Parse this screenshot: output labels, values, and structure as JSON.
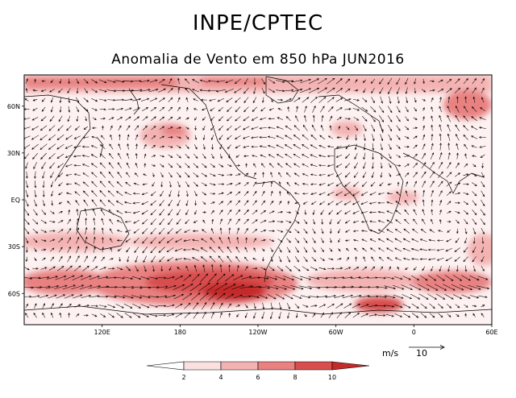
{
  "header": {
    "title": "INPE/CPTEC",
    "subtitle": "Anomalia de Vento em 850 hPa JUN2016"
  },
  "map": {
    "projection": "cylindrical equidistant",
    "lon_range": [
      60,
      420
    ],
    "lat_range": [
      -80,
      80
    ],
    "lat_ticks": [
      {
        "value": 60,
        "label": "60N"
      },
      {
        "value": 30,
        "label": "30N"
      },
      {
        "value": 0,
        "label": "EQ"
      },
      {
        "value": -30,
        "label": "30S"
      },
      {
        "value": -60,
        "label": "60S"
      }
    ],
    "lon_ticks": [
      {
        "value": 120,
        "label": "120E"
      },
      {
        "value": 180,
        "label": "180"
      },
      {
        "value": 240,
        "label": "120W"
      },
      {
        "value": 300,
        "label": "60W"
      },
      {
        "value": 360,
        "label": "0"
      },
      {
        "value": 420,
        "label": "60E"
      }
    ]
  },
  "legend": {
    "labels": [
      "2",
      "4",
      "6",
      "8",
      "10"
    ],
    "colors": [
      "#ffffff",
      "#fbe0e0",
      "#f4b3b3",
      "#e98181",
      "#d84d4d",
      "#c52a2a"
    ],
    "units": "m/s",
    "reference_vector": "10"
  },
  "colors": {
    "frame": "#000000",
    "coast": "#000000",
    "arrow": "#000000"
  }
}
